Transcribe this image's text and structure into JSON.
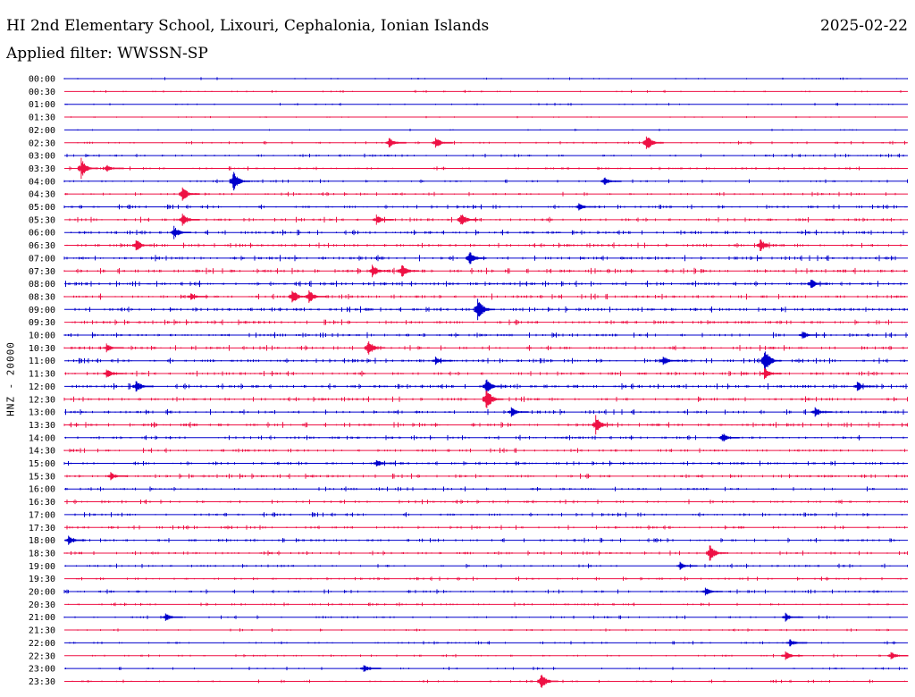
{
  "header": {
    "station": "HI 2nd Elementary School, Lixouri, Cephalonia, Ionian Islands",
    "date": "2025-02-22",
    "filter_text": "Applied filter: WWSSN-SP"
  },
  "colors": {
    "trace_a": "#0000cc",
    "trace_b": "#ee1144"
  },
  "chart_data": {
    "type": "line",
    "ylabel": "HNZ - 20000",
    "rows": [
      {
        "label": "00:00",
        "activity": 0.25,
        "events": []
      },
      {
        "label": "00:30",
        "activity": 0.25,
        "events": []
      },
      {
        "label": "01:00",
        "activity": 0.25,
        "events": []
      },
      {
        "label": "01:30",
        "activity": 0.15,
        "events": []
      },
      {
        "label": "02:00",
        "activity": 0.2,
        "events": []
      },
      {
        "label": "02:30",
        "activity": 0.4,
        "events": [
          [
            0.385,
            6
          ],
          [
            0.44,
            7
          ],
          [
            0.69,
            10
          ]
        ]
      },
      {
        "label": "03:00",
        "activity": 0.5,
        "events": []
      },
      {
        "label": "03:30",
        "activity": 0.5,
        "events": [
          [
            0.02,
            12
          ],
          [
            0.05,
            5
          ]
        ]
      },
      {
        "label": "04:00",
        "activity": 0.5,
        "events": [
          [
            0.2,
            13
          ],
          [
            0.64,
            5
          ]
        ]
      },
      {
        "label": "04:30",
        "activity": 0.6,
        "events": [
          [
            0.14,
            9
          ]
        ]
      },
      {
        "label": "05:00",
        "activity": 0.7,
        "events": [
          [
            0.61,
            5
          ]
        ]
      },
      {
        "label": "05:30",
        "activity": 0.9,
        "events": [
          [
            0.14,
            8
          ],
          [
            0.37,
            6
          ],
          [
            0.47,
            9
          ]
        ]
      },
      {
        "label": "06:00",
        "activity": 0.9,
        "events": [
          [
            0.13,
            8
          ]
        ]
      },
      {
        "label": "06:30",
        "activity": 0.9,
        "events": [
          [
            0.085,
            8
          ],
          [
            0.825,
            8
          ]
        ]
      },
      {
        "label": "07:00",
        "activity": 1.0,
        "events": [
          [
            0.48,
            9
          ]
        ]
      },
      {
        "label": "07:30",
        "activity": 1.0,
        "events": [
          [
            0.365,
            8
          ],
          [
            0.4,
            9
          ]
        ]
      },
      {
        "label": "08:00",
        "activity": 1.0,
        "events": [
          [
            0.885,
            7
          ]
        ]
      },
      {
        "label": "08:30",
        "activity": 1.0,
        "events": [
          [
            0.15,
            5
          ],
          [
            0.27,
            9
          ],
          [
            0.29,
            8
          ]
        ]
      },
      {
        "label": "09:00",
        "activity": 1.0,
        "events": [
          [
            0.49,
            14
          ]
        ]
      },
      {
        "label": "09:30",
        "activity": 0.9,
        "events": []
      },
      {
        "label": "10:00",
        "activity": 0.9,
        "events": [
          [
            0.875,
            5
          ]
        ]
      },
      {
        "label": "10:30",
        "activity": 0.9,
        "events": [
          [
            0.05,
            5
          ],
          [
            0.36,
            10
          ]
        ]
      },
      {
        "label": "11:00",
        "activity": 0.9,
        "events": [
          [
            0.44,
            5
          ],
          [
            0.71,
            6
          ],
          [
            0.83,
            15
          ]
        ]
      },
      {
        "label": "11:30",
        "activity": 0.9,
        "events": [
          [
            0.05,
            6
          ],
          [
            0.83,
            7
          ]
        ]
      },
      {
        "label": "12:00",
        "activity": 1.0,
        "events": [
          [
            0.085,
            8
          ],
          [
            0.5,
            11
          ],
          [
            0.94,
            6
          ]
        ]
      },
      {
        "label": "12:30",
        "activity": 0.9,
        "events": [
          [
            0.5,
            14
          ]
        ]
      },
      {
        "label": "13:00",
        "activity": 0.9,
        "events": [
          [
            0.53,
            6
          ],
          [
            0.89,
            6
          ]
        ]
      },
      {
        "label": "13:30",
        "activity": 0.9,
        "events": [
          [
            0.63,
            11
          ]
        ]
      },
      {
        "label": "14:00",
        "activity": 0.8,
        "events": [
          [
            0.78,
            6
          ]
        ]
      },
      {
        "label": "14:30",
        "activity": 0.8,
        "events": []
      },
      {
        "label": "15:00",
        "activity": 0.8,
        "events": [
          [
            0.37,
            5
          ]
        ]
      },
      {
        "label": "15:30",
        "activity": 0.8,
        "events": [
          [
            0.055,
            5
          ]
        ]
      },
      {
        "label": "16:00",
        "activity": 0.7,
        "events": []
      },
      {
        "label": "16:30",
        "activity": 0.7,
        "events": []
      },
      {
        "label": "17:00",
        "activity": 0.7,
        "events": []
      },
      {
        "label": "17:30",
        "activity": 0.7,
        "events": []
      },
      {
        "label": "18:00",
        "activity": 0.7,
        "events": [
          [
            0.005,
            6
          ]
        ]
      },
      {
        "label": "18:30",
        "activity": 0.7,
        "events": [
          [
            0.765,
            10
          ]
        ]
      },
      {
        "label": "19:00",
        "activity": 0.6,
        "events": [
          [
            0.73,
            5
          ]
        ]
      },
      {
        "label": "19:30",
        "activity": 0.6,
        "events": []
      },
      {
        "label": "20:00",
        "activity": 0.6,
        "events": [
          [
            0.76,
            5
          ]
        ]
      },
      {
        "label": "20:30",
        "activity": 0.5,
        "events": []
      },
      {
        "label": "21:00",
        "activity": 0.5,
        "events": [
          [
            0.12,
            5
          ],
          [
            0.855,
            5
          ]
        ]
      },
      {
        "label": "21:30",
        "activity": 0.4,
        "events": []
      },
      {
        "label": "22:00",
        "activity": 0.4,
        "events": [
          [
            0.86,
            5
          ]
        ]
      },
      {
        "label": "22:30",
        "activity": 0.4,
        "events": [
          [
            0.855,
            6
          ],
          [
            0.98,
            5
          ]
        ]
      },
      {
        "label": "23:00",
        "activity": 0.4,
        "events": [
          [
            0.355,
            5
          ]
        ]
      },
      {
        "label": "23:30",
        "activity": 0.4,
        "events": [
          [
            0.565,
            10
          ]
        ]
      }
    ]
  }
}
